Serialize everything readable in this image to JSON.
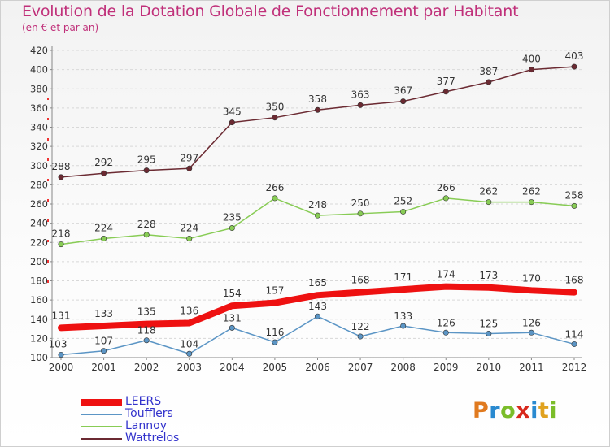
{
  "title": "Evolution de la Dotation Globale de Fonctionnement par Habitant",
  "subtitle": "(en € et par an)",
  "brand": {
    "letters": [
      "P",
      "r",
      "o",
      "x",
      "i",
      "t",
      "i"
    ],
    "colors": [
      "#e07a1f",
      "#2a8ad0",
      "#7bbd2a",
      "#d8281c",
      "#2a8ad0",
      "#e0a21f",
      "#7bbd2a"
    ]
  },
  "chart_data": {
    "type": "line",
    "title": "Evolution de la Dotation Globale de Fonctionnement par Habitant",
    "subtitle": "(en € et par an)",
    "xlabel": "",
    "ylabel": "",
    "x": [
      "2000",
      "2001",
      "2002",
      "2003",
      "2004",
      "2005",
      "2006",
      "2007",
      "2008",
      "2009",
      "2010",
      "2011",
      "2012"
    ],
    "ylim": [
      100,
      420
    ],
    "yticks": [
      100,
      120,
      140,
      160,
      180,
      200,
      220,
      240,
      260,
      280,
      300,
      320,
      340,
      360,
      380,
      400,
      420
    ],
    "grid": "horizontal dashed",
    "legend_position": "bottom-left",
    "series": [
      {
        "name": "LEERS",
        "color": "#ee1111",
        "values": [
          131,
          133,
          135,
          136,
          154,
          157,
          165,
          168,
          171,
          174,
          173,
          170,
          168
        ]
      },
      {
        "name": "Toufflers",
        "color": "#5b95c5",
        "values": [
          103,
          107,
          118,
          104,
          131,
          116,
          143,
          122,
          133,
          126,
          125,
          126,
          114
        ]
      },
      {
        "name": "Lannoy",
        "color": "#88cc55",
        "values": [
          218,
          224,
          228,
          224,
          235,
          266,
          248,
          250,
          252,
          266,
          262,
          262,
          258
        ]
      },
      {
        "name": "Wattrelos",
        "color": "#6b2a32",
        "values": [
          288,
          292,
          295,
          297,
          345,
          350,
          358,
          363,
          367,
          377,
          387,
          400,
          403
        ]
      }
    ]
  }
}
